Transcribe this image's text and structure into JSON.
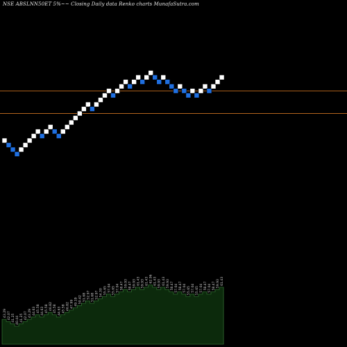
{
  "title": "NSE ABSLNN50ET 5%~~ Closing Daily data Renko charts MunafaSutra.com",
  "colors": {
    "background": "#000000",
    "brick_up": "#ffffff",
    "brick_down": "#1f6fe0",
    "level_line": "#b5651d",
    "volume_fill": "#0c2a0c",
    "volume_stroke": "#2f6b2f",
    "label": "#cfcfcf"
  },
  "chart_data": {
    "type": "renko",
    "title": "NSE ABSLNN50ET 5%~~ Closing Daily data Renko charts MunafaSutra.com",
    "bricks": [
      {
        "dir": "up",
        "level": 14
      },
      {
        "dir": "down",
        "level": 13
      },
      {
        "dir": "down",
        "level": 12
      },
      {
        "dir": "down",
        "level": 11
      },
      {
        "dir": "up",
        "level": 12
      },
      {
        "dir": "up",
        "level": 13
      },
      {
        "dir": "up",
        "level": 14
      },
      {
        "dir": "up",
        "level": 15
      },
      {
        "dir": "up",
        "level": 16
      },
      {
        "dir": "down",
        "level": 15
      },
      {
        "dir": "up",
        "level": 16
      },
      {
        "dir": "up",
        "level": 17
      },
      {
        "dir": "down",
        "level": 16
      },
      {
        "dir": "down",
        "level": 15
      },
      {
        "dir": "up",
        "level": 16
      },
      {
        "dir": "up",
        "level": 17
      },
      {
        "dir": "up",
        "level": 18
      },
      {
        "dir": "up",
        "level": 19
      },
      {
        "dir": "up",
        "level": 20
      },
      {
        "dir": "up",
        "level": 21
      },
      {
        "dir": "up",
        "level": 22
      },
      {
        "dir": "down",
        "level": 21
      },
      {
        "dir": "up",
        "level": 22
      },
      {
        "dir": "up",
        "level": 23
      },
      {
        "dir": "up",
        "level": 24
      },
      {
        "dir": "up",
        "level": 25
      },
      {
        "dir": "down",
        "level": 24
      },
      {
        "dir": "up",
        "level": 25
      },
      {
        "dir": "up",
        "level": 26
      },
      {
        "dir": "up",
        "level": 27
      },
      {
        "dir": "down",
        "level": 26
      },
      {
        "dir": "up",
        "level": 27
      },
      {
        "dir": "up",
        "level": 28
      },
      {
        "dir": "down",
        "level": 27
      },
      {
        "dir": "up",
        "level": 28
      },
      {
        "dir": "up",
        "level": 29
      },
      {
        "dir": "down",
        "level": 28
      },
      {
        "dir": "down",
        "level": 27
      },
      {
        "dir": "up",
        "level": 28
      },
      {
        "dir": "down",
        "level": 27
      },
      {
        "dir": "down",
        "level": 26
      },
      {
        "dir": "down",
        "level": 25
      },
      {
        "dir": "up",
        "level": 26
      },
      {
        "dir": "down",
        "level": 25
      },
      {
        "dir": "down",
        "level": 24
      },
      {
        "dir": "up",
        "level": 25
      },
      {
        "dir": "down",
        "level": 24
      },
      {
        "dir": "up",
        "level": 25
      },
      {
        "dir": "up",
        "level": 26
      },
      {
        "dir": "down",
        "level": 25
      },
      {
        "dir": "up",
        "level": 26
      },
      {
        "dir": "up",
        "level": 27
      },
      {
        "dir": "up",
        "level": 28
      }
    ],
    "brick_labels": [
      "43.29",
      "42.07",
      "41.25",
      "40.44",
      "41.25",
      "42.07",
      "43.29",
      "44.63",
      "45.58",
      "44.63",
      "45.58",
      "46.82",
      "45.58",
      "44.63",
      "45.58",
      "46.82",
      "47.99",
      "49.19",
      "50.42",
      "51.68",
      "52.97",
      "51.68",
      "52.97",
      "54.30",
      "55.65",
      "57.04",
      "55.65",
      "57.04",
      "58.47",
      "59.93",
      "58.47",
      "59.93",
      "61.43",
      "59.93",
      "61.43",
      "62.96",
      "61.43",
      "59.93",
      "61.43",
      "59.93",
      "58.47",
      "57.04",
      "58.47",
      "57.04",
      "55.65",
      "57.04",
      "55.65",
      "57.04",
      "58.47",
      "57.04",
      "58.47",
      "59.93",
      "61.43"
    ],
    "reference_lines": [
      25,
      20
    ]
  }
}
